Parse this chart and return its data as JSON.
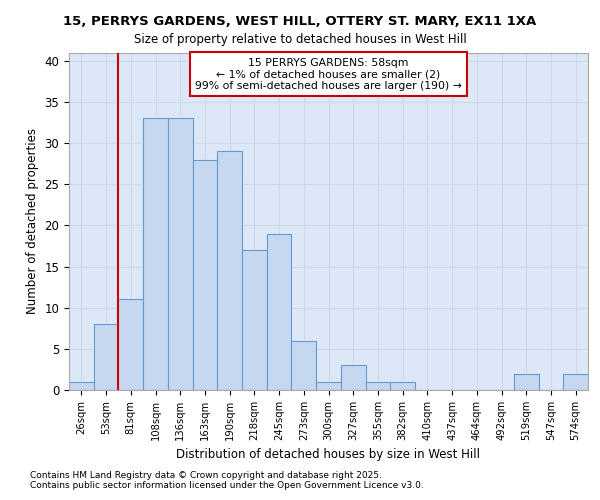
{
  "title1": "15, PERRYS GARDENS, WEST HILL, OTTERY ST. MARY, EX11 1XA",
  "title2": "Size of property relative to detached houses in West Hill",
  "xlabel": "Distribution of detached houses by size in West Hill",
  "ylabel": "Number of detached properties",
  "bins": [
    "26sqm",
    "53sqm",
    "81sqm",
    "108sqm",
    "136sqm",
    "163sqm",
    "190sqm",
    "218sqm",
    "245sqm",
    "273sqm",
    "300sqm",
    "327sqm",
    "355sqm",
    "382sqm",
    "410sqm",
    "437sqm",
    "464sqm",
    "492sqm",
    "519sqm",
    "547sqm",
    "574sqm"
  ],
  "values": [
    1,
    8,
    11,
    33,
    33,
    28,
    29,
    17,
    19,
    6,
    1,
    3,
    1,
    1,
    0,
    0,
    0,
    0,
    2,
    0,
    2
  ],
  "bar_color": "#c5d8f0",
  "bar_edge_color": "#6699cc",
  "vline_x_idx": 1,
  "vline_color": "#cc0000",
  "annotation_text": "15 PERRYS GARDENS: 58sqm\n← 1% of detached houses are smaller (2)\n99% of semi-detached houses are larger (190) →",
  "annotation_box_color": "#ffffff",
  "annotation_box_edge": "#cc0000",
  "ylim": [
    0,
    41
  ],
  "yticks": [
    0,
    5,
    10,
    15,
    20,
    25,
    30,
    35,
    40
  ],
  "grid_color": "#d0d8e8",
  "bg_color": "#dce8f8",
  "footer": "Contains HM Land Registry data © Crown copyright and database right 2025.\nContains public sector information licensed under the Open Government Licence v3.0."
}
